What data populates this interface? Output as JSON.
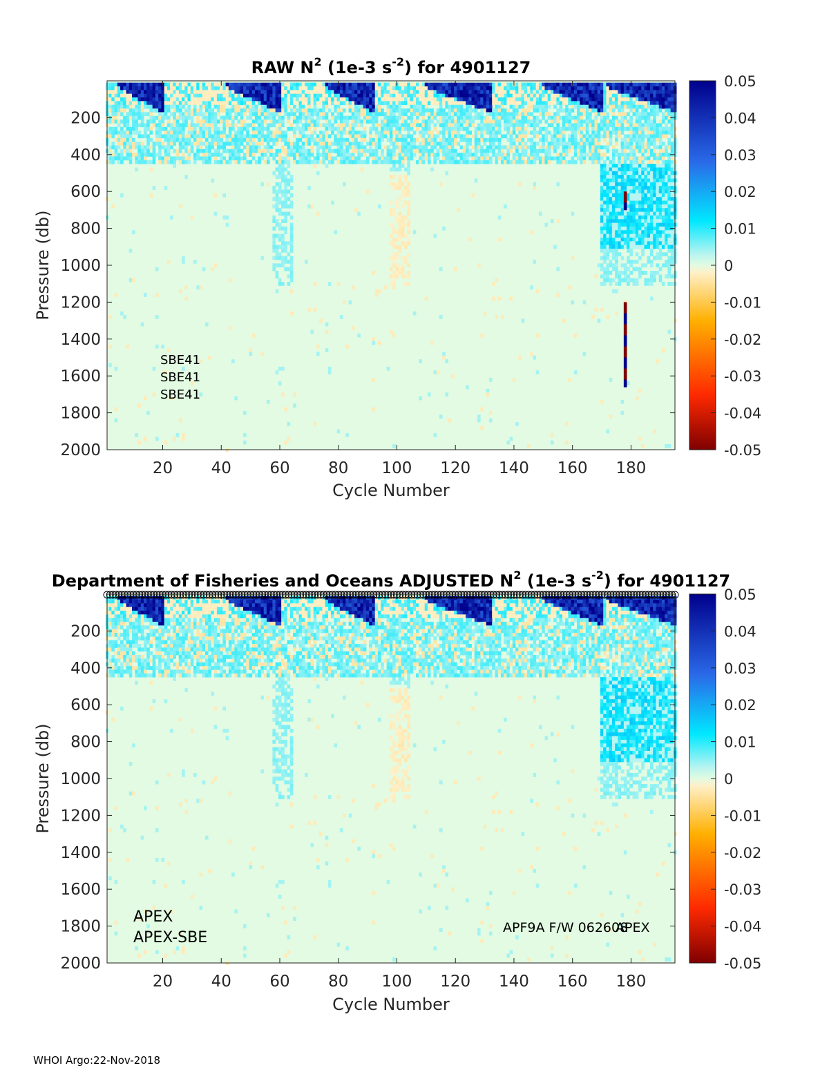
{
  "figure": {
    "footer": "WHOI Argo:22-Nov-2018"
  },
  "colorbar": {
    "ticks": [
      "0.05",
      "0.04",
      "0.03",
      "0.02",
      "0.01",
      "0",
      "-0.01",
      "-0.02",
      "-0.03",
      "-0.04",
      "-0.05"
    ],
    "tick_values": [
      0.05,
      0.04,
      0.03,
      0.02,
      0.01,
      0,
      -0.01,
      -0.02,
      -0.03,
      -0.04,
      -0.05
    ],
    "range": [
      -0.05,
      0.05
    ],
    "colors": {
      "neg_max": "#7f0000",
      "neg_mid": "#ff2a00",
      "neg_low": "#ffb000",
      "neg_min": "#fff0c8",
      "zero": "#e2fbe2",
      "pos_min": "#b8f4f0",
      "pos_low": "#00e8ff",
      "pos_mid": "#2a6ae8",
      "pos_max": "#00008c"
    }
  },
  "chart_data": [
    {
      "type": "heatmap",
      "title_parts": [
        "RAW N",
        "2",
        " (1e-3 s",
        "-2",
        ") for 4901127"
      ],
      "xlabel": "Cycle Number",
      "ylabel": "Pressure (db)",
      "xlim": [
        1,
        195
      ],
      "ylim": [
        2000,
        0
      ],
      "xticks": [
        20,
        40,
        60,
        80,
        100,
        120,
        140,
        160,
        180
      ],
      "xtick_labels": [
        "20",
        "40",
        "60",
        "80",
        "100",
        "120",
        "140",
        "160",
        "180"
      ],
      "yticks": [
        200,
        400,
        600,
        800,
        1000,
        1200,
        1400,
        1600,
        1800,
        2000
      ],
      "ytick_labels": [
        "200",
        "400",
        "600",
        "800",
        "1000",
        "1200",
        "1400",
        "1600",
        "1800",
        "2000"
      ],
      "annotations": [
        "SBE41",
        "SBE41",
        "SBE41"
      ],
      "features": {
        "surface_stratification_cycles": [
          [
            5,
            20
          ],
          [
            42,
            60
          ],
          [
            76,
            92
          ],
          [
            110,
            132
          ],
          [
            150,
            170
          ],
          [
            172,
            195
          ]
        ],
        "deep_spikes": [
          {
            "cycle": 178,
            "p_from": 600,
            "p_to": 700
          },
          {
            "cycle": 178,
            "p_from": 1200,
            "p_to": 1650
          }
        ]
      }
    },
    {
      "type": "heatmap",
      "title_parts": [
        "Department of Fisheries and Oceans  ADJUSTED N",
        "2",
        " (1e-3 s",
        "-2",
        ") for 4901127"
      ],
      "xlabel": "Cycle Number",
      "ylabel": "Pressure (db)",
      "xlim": [
        1,
        195
      ],
      "ylim": [
        2000,
        0
      ],
      "xticks": [
        20,
        40,
        60,
        80,
        100,
        120,
        140,
        160,
        180
      ],
      "xtick_labels": [
        "20",
        "40",
        "60",
        "80",
        "100",
        "120",
        "140",
        "160",
        "180"
      ],
      "yticks": [
        200,
        400,
        600,
        800,
        1000,
        1200,
        1400,
        1600,
        1800,
        2000
      ],
      "ytick_labels": [
        "200",
        "400",
        "600",
        "800",
        "1000",
        "1200",
        "1400",
        "1600",
        "1800",
        "2000"
      ],
      "annotations": [
        "APEX",
        "APEX-SBE",
        "APF9A F/W 062608",
        "APEX"
      ],
      "features": {
        "surface_stratification_cycles": [
          [
            5,
            20
          ],
          [
            42,
            60
          ],
          [
            76,
            92
          ],
          [
            110,
            132
          ],
          [
            150,
            170
          ],
          [
            172,
            195
          ]
        ],
        "deep_spikes": []
      }
    }
  ]
}
